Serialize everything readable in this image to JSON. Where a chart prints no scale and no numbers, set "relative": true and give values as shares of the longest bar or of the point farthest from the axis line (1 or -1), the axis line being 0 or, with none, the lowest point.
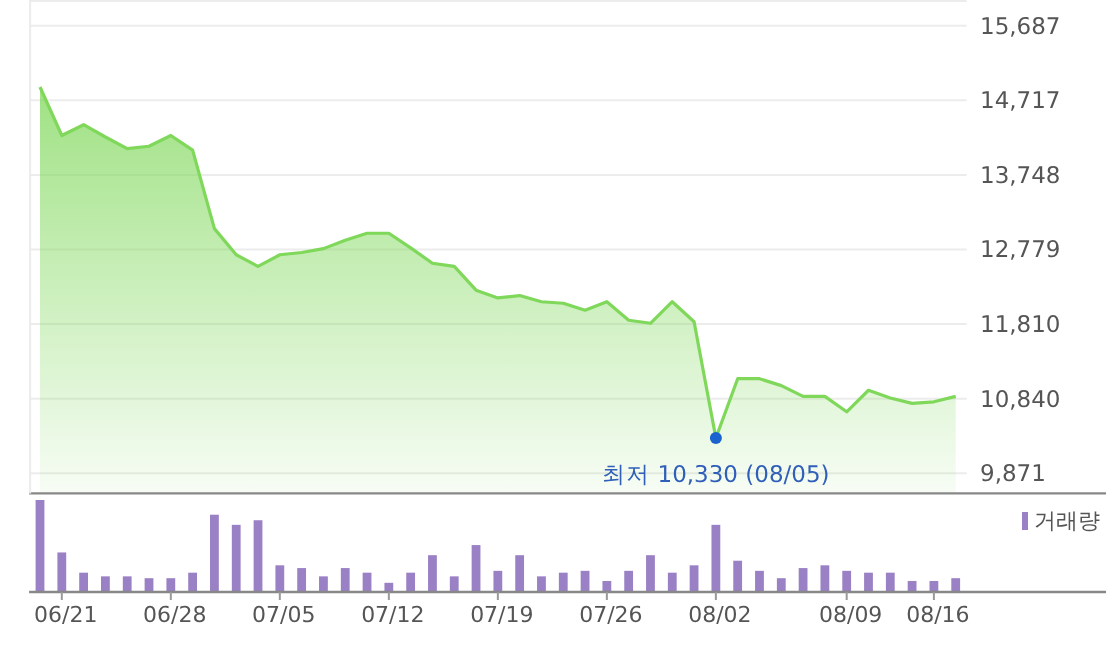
{
  "chart_data": [
    {
      "type": "area",
      "categories": [
        null,
        null,
        null,
        null,
        null,
        null,
        null,
        null,
        null,
        null,
        null,
        null,
        null,
        null,
        null,
        null,
        null,
        null,
        null,
        null,
        null,
        null,
        null,
        null,
        null,
        null,
        null,
        null,
        null,
        null,
        null,
        null,
        null,
        null,
        null,
        null,
        null,
        null,
        null,
        null,
        null,
        null,
        null
      ],
      "series": [
        {
          "color": "#7fd85a",
          "values": [
            14890,
            14260,
            14400,
            14240,
            14090,
            14120,
            14260,
            14070,
            13050,
            12710,
            12560,
            12710,
            12740,
            12790,
            12900,
            12990,
            12990,
            12800,
            12600,
            12560,
            12250,
            12150,
            12180,
            12100,
            12080,
            11990,
            12100,
            11860,
            11820,
            12100,
            11840,
            10330,
            11100,
            11100,
            11010,
            10870,
            10870,
            10670,
            10950,
            10850,
            10780,
            10800,
            10870
          ]
        }
      ],
      "ylim": [
        9610,
        16020
      ],
      "yticks": [
        {
          "value": 9871,
          "label": "9,871"
        },
        {
          "value": 10840,
          "label": "10,840"
        },
        {
          "value": 11810,
          "label": "11,810"
        },
        {
          "value": 12779,
          "label": "12,779"
        },
        {
          "value": 13748,
          "label": "13,748"
        },
        {
          "value": 14717,
          "label": "14,717"
        },
        {
          "value": 15687,
          "label": "15,687"
        }
      ],
      "grid": "y",
      "annotations": [
        {
          "text": "최저 10,330 (08/05)",
          "y": 10330
        }
      ]
    },
    {
      "type": "bar",
      "categories": [
        null,
        "06/21",
        null,
        null,
        null,
        null,
        "06/28",
        null,
        null,
        null,
        null,
        "07/05",
        null,
        null,
        null,
        null,
        "07/12",
        null,
        null,
        null,
        null,
        "07/19",
        null,
        null,
        null,
        null,
        "07/26",
        null,
        null,
        null,
        null,
        "08/02",
        null,
        null,
        null,
        null,
        null,
        "08/09",
        null,
        null,
        null,
        "08/16",
        null
      ],
      "series": [
        {
          "name": "거래량",
          "color": "#9a80c4",
          "values": [
            1,
            0.43,
            0.21,
            0.17,
            0.17,
            0.15,
            0.15,
            0.21,
            0.84,
            0.73,
            0.78,
            0.29,
            0.26,
            0.17,
            0.26,
            0.21,
            0.1,
            0.21,
            0.4,
            0.17,
            0.51,
            0.23,
            0.4,
            0.17,
            0.21,
            0.23,
            0.12,
            0.23,
            0.4,
            0.21,
            0.29,
            0.73,
            0.34,
            0.23,
            0.15,
            0.26,
            0.29,
            0.23,
            0.21,
            0.21,
            0.12,
            0.12,
            0.15
          ]
        }
      ],
      "relative": true,
      "legend": "top right"
    }
  ]
}
